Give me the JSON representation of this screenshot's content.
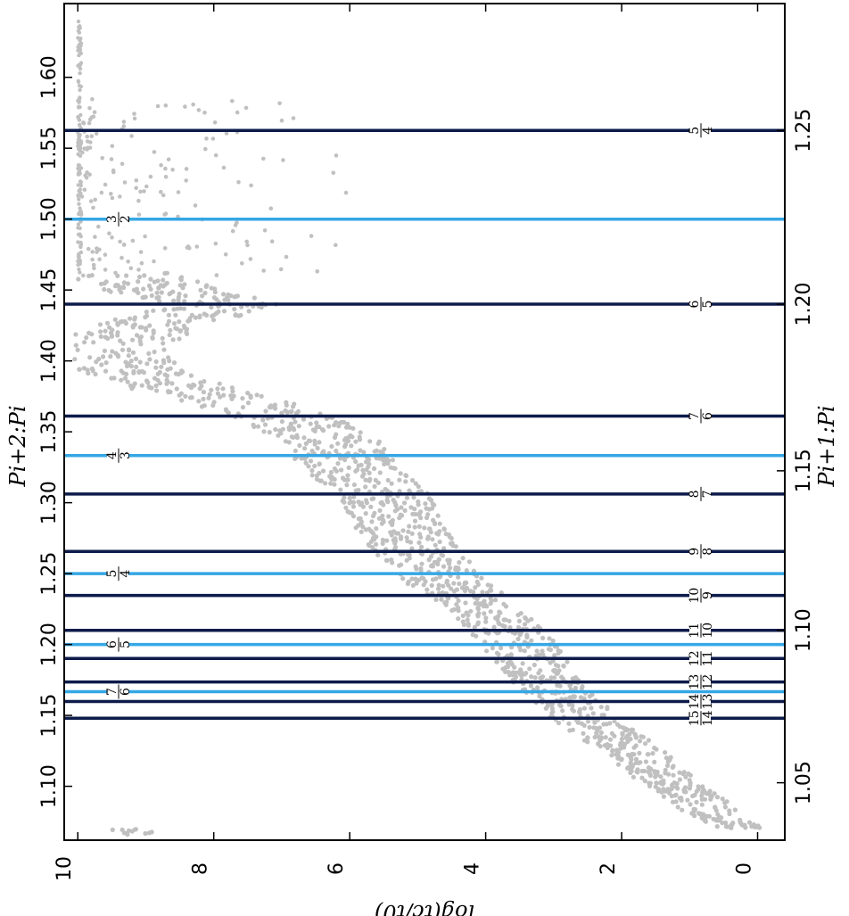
{
  "chart_data": {
    "type": "scatter",
    "rotated": "figure rotated 90 degrees counter-clockwise",
    "x_axis": {
      "label": "log(t_c/t_0)",
      "label_display": "log(tc/t0)",
      "range": [
        10.2,
        -0.4
      ],
      "ticks": [
        10,
        8,
        6,
        4,
        2,
        0
      ],
      "tick_labels": [
        "10",
        "8",
        "6",
        "4",
        "2",
        "0"
      ]
    },
    "y_axis_left": {
      "label": "P_{i+2}:P_i",
      "label_display": "Pi+2:Pi",
      "range": [
        1.062,
        1.652
      ],
      "ticks": [
        1.1,
        1.15,
        1.2,
        1.25,
        1.3,
        1.35,
        1.4,
        1.45,
        1.5,
        1.55,
        1.6
      ],
      "tick_labels": [
        "1.10",
        "1.15",
        "1.20",
        "1.25",
        "1.30",
        "1.35",
        "1.40",
        "1.45",
        "1.50",
        "1.55",
        "1.60"
      ]
    },
    "y_axis_right": {
      "label": "P_{i+1}:P_i",
      "label_display": "Pi+1:Pi",
      "ticks": [
        1.05,
        1.1,
        1.15,
        1.2,
        1.25
      ],
      "tick_labels": [
        "1.05",
        "1.10",
        "1.15",
        "1.20",
        "1.25"
      ]
    },
    "resonance_lines_first_order": [
      {
        "label_num": "5",
        "label_den": "4",
        "value": 1.5625
      },
      {
        "label_num": "6",
        "label_den": "5",
        "value": 1.44
      },
      {
        "label_num": "7",
        "label_den": "6",
        "value": 1.3611
      },
      {
        "label_num": "8",
        "label_den": "7",
        "value": 1.3061
      },
      {
        "label_num": "9",
        "label_den": "8",
        "value": 1.2656
      },
      {
        "label_num": "10",
        "label_den": "9",
        "value": 1.2346
      },
      {
        "label_num": "11",
        "label_den": "10",
        "value": 1.21
      },
      {
        "label_num": "12",
        "label_den": "11",
        "value": 1.1901
      },
      {
        "label_num": "13",
        "label_den": "12",
        "value": 1.1736
      },
      {
        "label_num": "14",
        "label_den": "13",
        "value": 1.1598
      },
      {
        "label_num": "15",
        "label_den": "14",
        "value": 1.148
      }
    ],
    "resonance_lines_second_order": [
      {
        "label_num": "3",
        "label_den": "2",
        "value": 1.5
      },
      {
        "label_num": "4",
        "label_den": "3",
        "value": 1.3333
      },
      {
        "label_num": "5",
        "label_den": "4",
        "value": 1.25
      },
      {
        "label_num": "6",
        "label_den": "5",
        "value": 1.2
      },
      {
        "label_num": "7",
        "label_den": "6",
        "value": 1.1667
      }
    ],
    "colors": {
      "points": "#c0c0c0",
      "first_order_line": "#0d1b4a",
      "second_order_line": "#35a7e5"
    },
    "trend": [
      [
        1.07,
        0.3
      ],
      [
        1.08,
        0.6
      ],
      [
        1.09,
        0.9
      ],
      [
        1.1,
        1.2
      ],
      [
        1.11,
        1.5
      ],
      [
        1.12,
        1.7
      ],
      [
        1.13,
        2.0
      ],
      [
        1.14,
        2.3
      ],
      [
        1.15,
        2.6
      ],
      [
        1.165,
        2.9
      ],
      [
        1.185,
        3.3
      ],
      [
        1.205,
        3.6
      ],
      [
        1.225,
        4.0
      ],
      [
        1.245,
        4.6
      ],
      [
        1.265,
        5.0
      ],
      [
        1.285,
        5.3
      ],
      [
        1.305,
        5.5
      ],
      [
        1.325,
        6.0
      ],
      [
        1.345,
        6.3
      ],
      [
        1.365,
        7.2
      ],
      [
        1.38,
        8.4
      ],
      [
        1.395,
        9.3
      ],
      [
        1.41,
        9.5
      ],
      [
        1.425,
        9.0
      ],
      [
        1.44,
        7.8
      ],
      [
        1.45,
        8.8
      ],
      [
        1.46,
        9.3
      ]
    ]
  }
}
